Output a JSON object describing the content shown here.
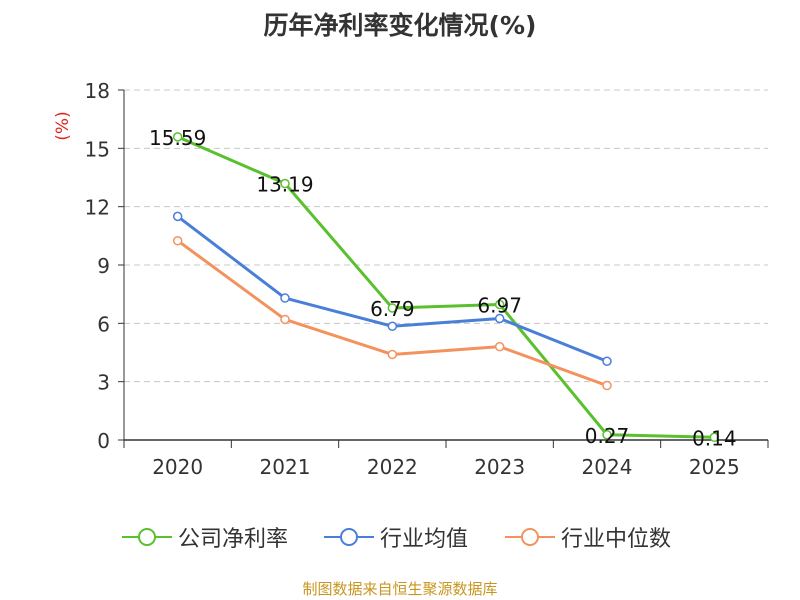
{
  "chart_data": {
    "type": "line",
    "title": "历年净利率变化情况(%)",
    "ylabel": "(%)",
    "xlabel": "",
    "ylim": [
      0,
      18
    ],
    "yticks": [
      0,
      3,
      6,
      9,
      12,
      15,
      18
    ],
    "categories": [
      "2020",
      "2021",
      "2022",
      "2023",
      "2024",
      "2025"
    ],
    "grid": true,
    "legend_position": "bottom",
    "series": [
      {
        "name": "公司净利率",
        "color": "#5ac02d",
        "values": [
          15.59,
          13.19,
          6.79,
          6.97,
          0.27,
          0.14
        ],
        "labels": [
          "15.59",
          "13.19",
          "6.79",
          "6.97",
          "0.27",
          "0.14"
        ]
      },
      {
        "name": "行业均值",
        "color": "#4a7fd9",
        "values": [
          11.5,
          7.3,
          5.85,
          6.25,
          4.05,
          null
        ]
      },
      {
        "name": "行业中位数",
        "color": "#f3925e",
        "values": [
          10.25,
          6.2,
          4.4,
          4.8,
          2.8,
          null
        ]
      }
    ]
  },
  "source_note": "制图数据来自恒生聚源数据库"
}
